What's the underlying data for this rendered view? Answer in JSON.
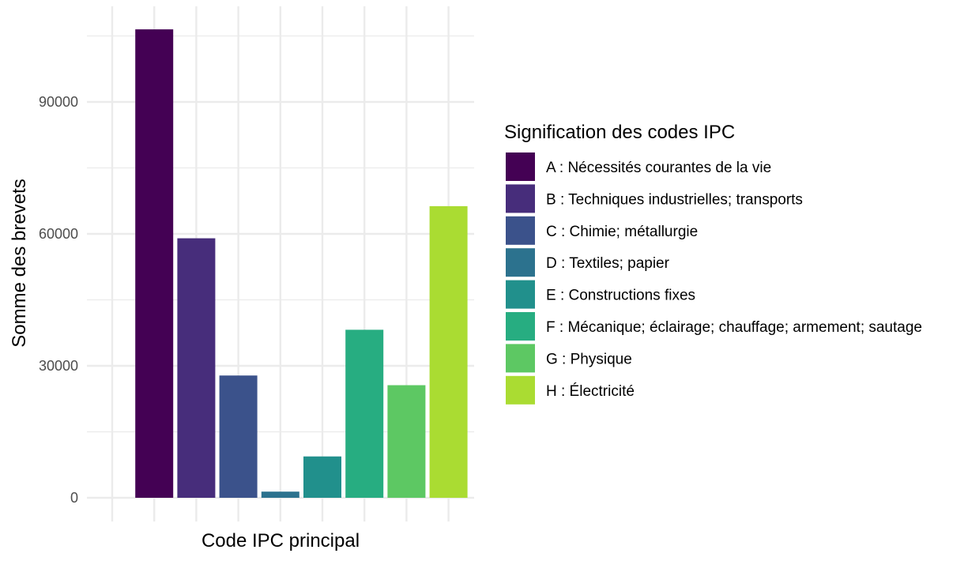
{
  "chart_data": {
    "type": "bar",
    "categories": [
      "A",
      "B",
      "C",
      "D",
      "E",
      "F",
      "G",
      "H"
    ],
    "values": [
      106500,
      59000,
      27800,
      1400,
      9400,
      38200,
      25600,
      66300
    ],
    "colors": [
      "#440154",
      "#472D7B",
      "#3B528B",
      "#2C728E",
      "#21908C",
      "#27AD81",
      "#5DC863",
      "#AADC32"
    ],
    "xlabel": "Code IPC principal",
    "ylabel": "Somme des brevets",
    "ylim": [
      0,
      111000
    ],
    "yticks": [
      0,
      30000,
      60000,
      90000
    ],
    "ytick_labels": [
      "0",
      "30000",
      "60000",
      "90000"
    ],
    "grid": true,
    "legend": {
      "title": "Signification des codes IPC",
      "position": "right",
      "entries": [
        "A : Nécessités courantes de la vie",
        "B : Techniques industrielles; transports",
        "C : Chimie; métallurgie",
        "D : Textiles; papier",
        "E : Constructions fixes",
        "F : Mécanique; éclairage; chauffage; armement; sautage",
        "G : Physique",
        "H : Électricité"
      ]
    }
  }
}
